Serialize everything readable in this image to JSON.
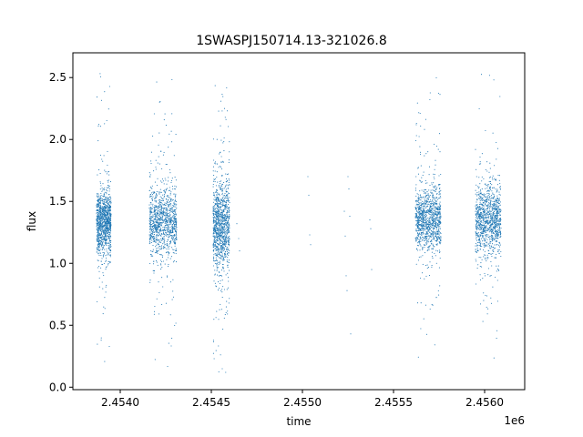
{
  "chart_data": {
    "type": "scatter",
    "title": "1SWASPJ150714.13-321026.8",
    "xlabel": "time",
    "ylabel": "flux",
    "x_offset_label": "1e6",
    "xlim": [
      2453740,
      2456220
    ],
    "ylim": [
      -0.02,
      2.7
    ],
    "x_ticks": [
      2454000,
      2454500,
      2455000,
      2455500,
      2456000
    ],
    "x_tick_labels": [
      "2.4540",
      "2.4545",
      "2.4550",
      "2.4555",
      "2.4560"
    ],
    "y_ticks": [
      0.0,
      0.5,
      1.0,
      1.5,
      2.0,
      2.5
    ],
    "y_tick_labels": [
      "0.0",
      "0.5",
      "1.0",
      "1.5",
      "2.0",
      "2.5"
    ],
    "grid": false,
    "legend": "none",
    "marker_color": "#1f77b4",
    "observing_seasons": [
      {
        "x_start": 2453870,
        "x_end": 2453950,
        "flux_center": 1.33,
        "flux_spread": 0.12,
        "flux_min": 0.12,
        "flux_max": 2.57
      },
      {
        "x_start": 2454160,
        "x_end": 2454310,
        "flux_center": 1.33,
        "flux_spread": 0.13,
        "flux_min": 0.12,
        "flux_max": 2.58
      },
      {
        "x_start": 2454510,
        "x_end": 2454600,
        "flux_center": 1.3,
        "flux_spread": 0.17,
        "flux_min": 0.1,
        "flux_max": 2.6
      },
      {
        "x_start": 2455620,
        "x_end": 2455760,
        "flux_center": 1.36,
        "flux_spread": 0.12,
        "flux_min": 0.12,
        "flux_max": 2.58
      },
      {
        "x_start": 2455950,
        "x_end": 2456090,
        "flux_center": 1.35,
        "flux_spread": 0.14,
        "flux_min": 0.12,
        "flux_max": 2.58
      }
    ],
    "isolated_points": [
      {
        "x": 2454640,
        "y": 1.32
      },
      {
        "x": 2454650,
        "y": 1.2
      },
      {
        "x": 2454655,
        "y": 1.1
      },
      {
        "x": 2455030,
        "y": 1.7
      },
      {
        "x": 2455035,
        "y": 1.55
      },
      {
        "x": 2455040,
        "y": 1.23
      },
      {
        "x": 2455045,
        "y": 1.15
      },
      {
        "x": 2455230,
        "y": 1.42
      },
      {
        "x": 2455235,
        "y": 1.22
      },
      {
        "x": 2455240,
        "y": 0.9
      },
      {
        "x": 2455245,
        "y": 0.78
      },
      {
        "x": 2455250,
        "y": 1.7
      },
      {
        "x": 2455255,
        "y": 1.6
      },
      {
        "x": 2455260,
        "y": 1.38
      },
      {
        "x": 2455265,
        "y": 0.43
      },
      {
        "x": 2455370,
        "y": 1.35
      },
      {
        "x": 2455375,
        "y": 1.28
      },
      {
        "x": 2455380,
        "y": 0.95
      }
    ]
  }
}
